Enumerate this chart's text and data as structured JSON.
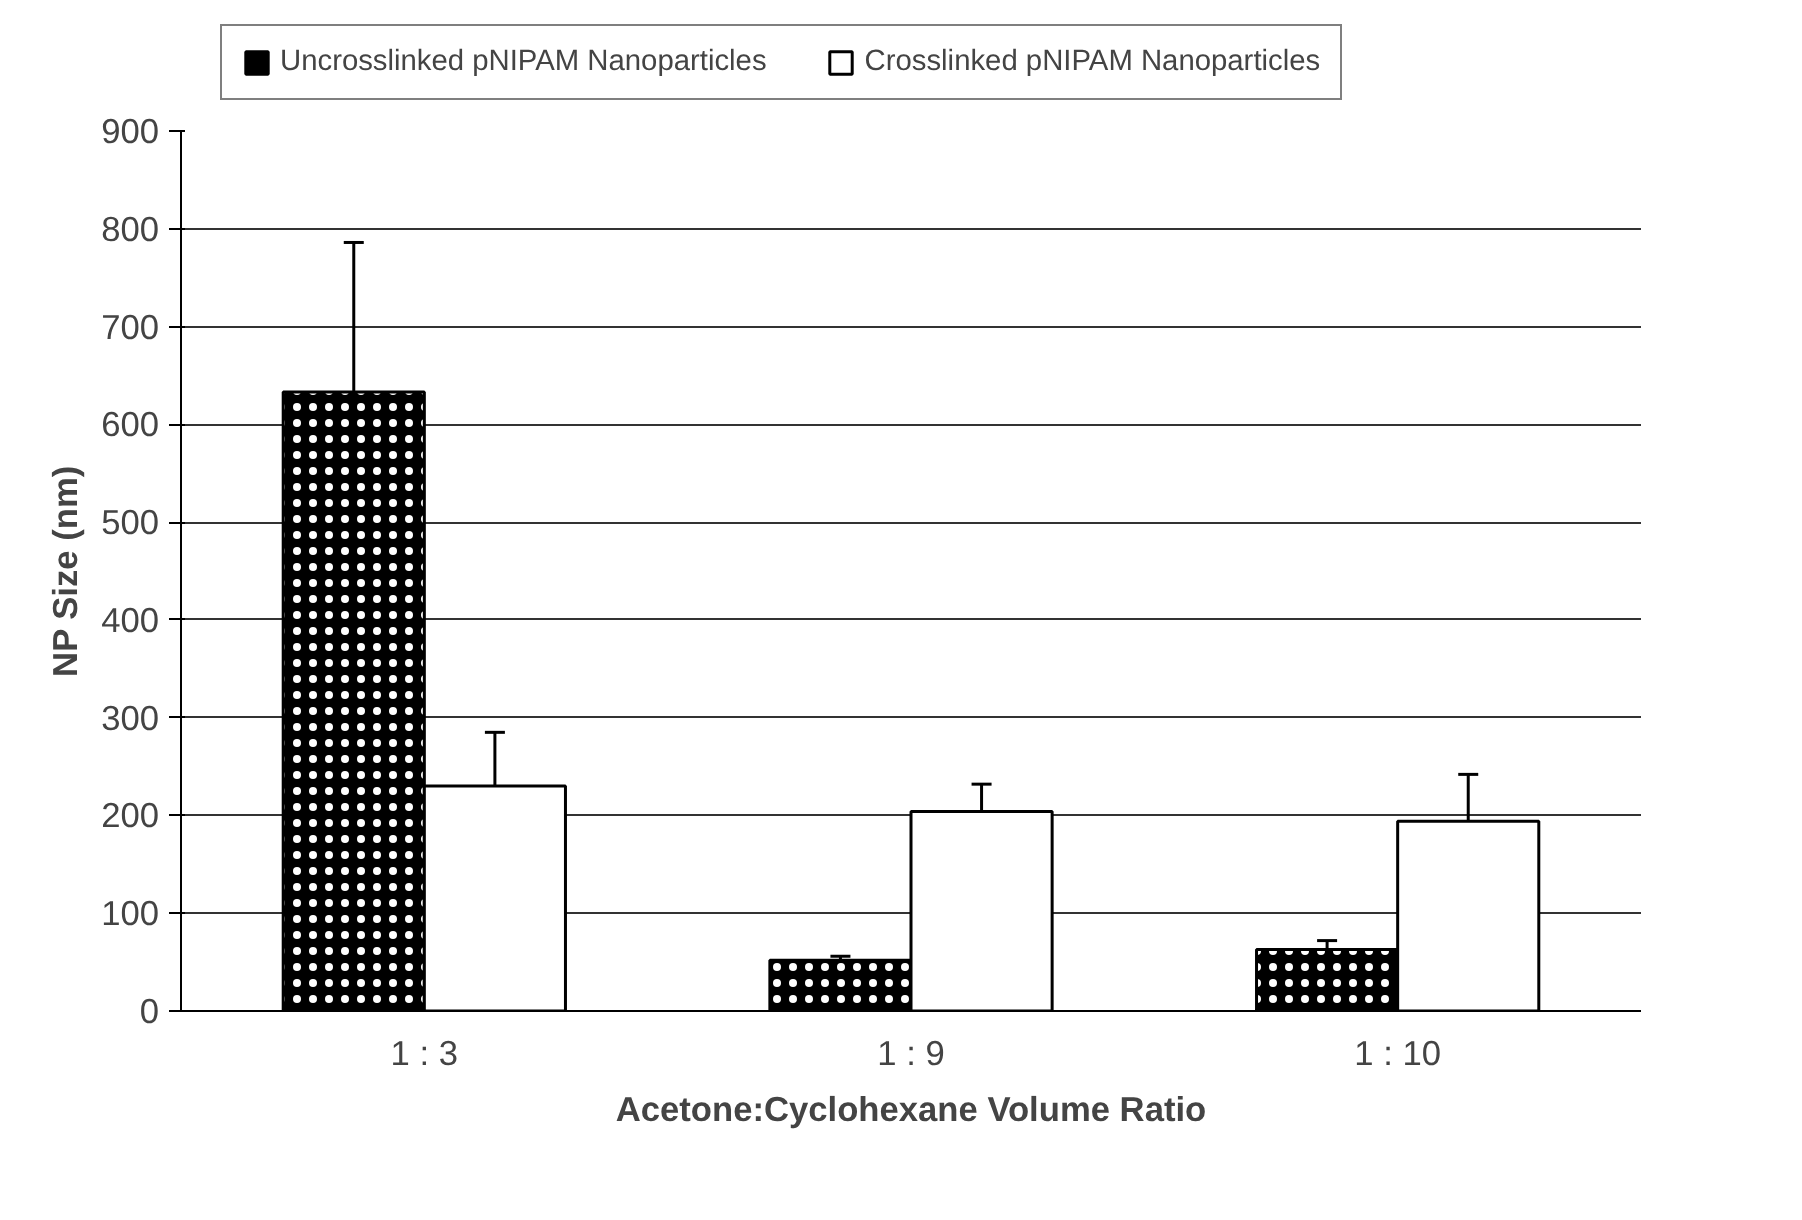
{
  "chart_data": {
    "type": "bar",
    "xlabel": "Acetone:Cyclohexane Volume Ratio",
    "ylabel": "NP Size (nm)",
    "categories": [
      "1 : 3",
      "1 : 9",
      "1 : 10"
    ],
    "series": [
      {
        "name": "Uncrosslinked pNIPAM Nanoparticles",
        "color": "#000000",
        "values": [
          633,
          52,
          63
        ],
        "errors": [
          153,
          4,
          9
        ]
      },
      {
        "name": "Crosslinked pNIPAM Nanoparticles",
        "color": "#ffffff",
        "values": [
          230,
          204,
          194
        ],
        "errors": [
          55,
          28,
          48
        ]
      }
    ],
    "ylim": [
      0,
      900
    ],
    "yticks": [
      0,
      100,
      200,
      300,
      400,
      500,
      600,
      700,
      800,
      900
    ],
    "grid": "y",
    "legend": "top"
  }
}
